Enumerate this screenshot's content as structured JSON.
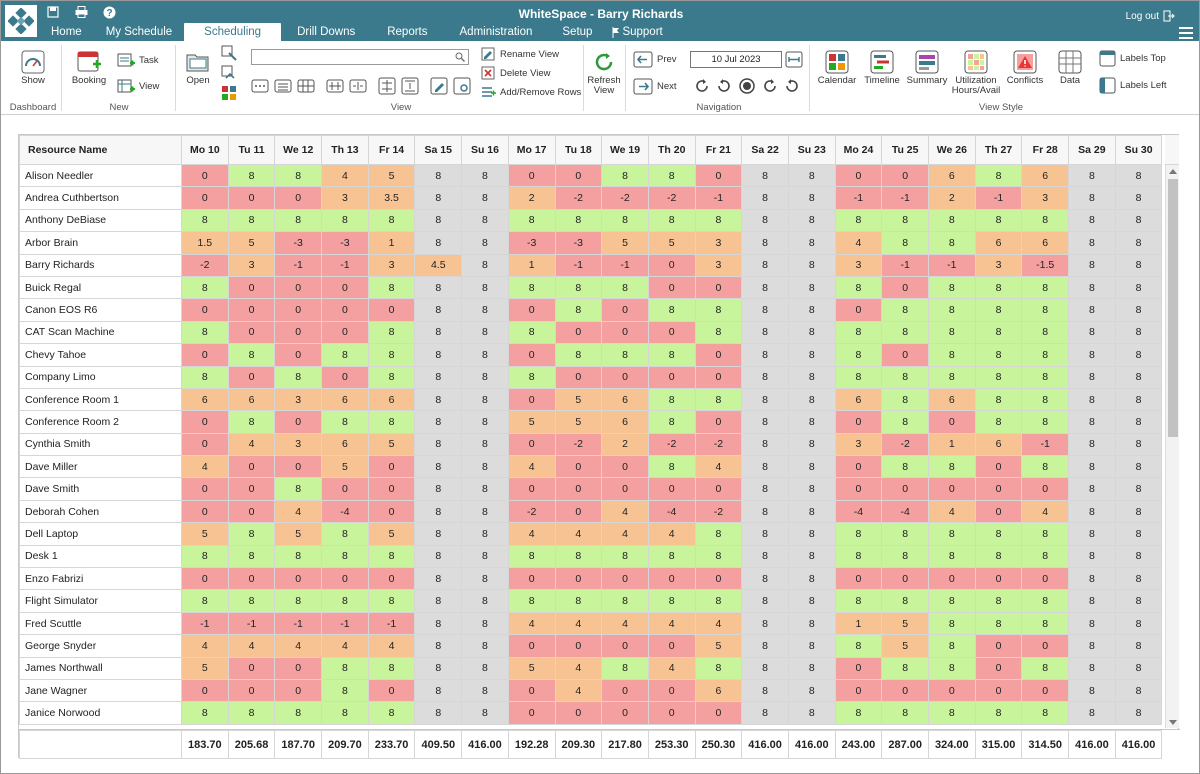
{
  "window": {
    "title": "WhiteSpace - Barry Richards",
    "logout": "Log out"
  },
  "menu_tabs": [
    "Home",
    "My Schedule",
    "Scheduling",
    "Drill Downs",
    "Reports",
    "Administration",
    "Setup",
    "Support"
  ],
  "active_tab": "Scheduling",
  "ribbon": {
    "show": "Show",
    "dashboard_group": "Dashboard",
    "booking": "Booking",
    "task": "Task",
    "view_new": "View",
    "new_group": "New",
    "open": "Open",
    "search_placeholder": "",
    "view_group": "View",
    "rename_view": "Rename View",
    "delete_view": "Delete View",
    "add_remove_rows": "Add/Remove Rows",
    "refresh_view": "Refresh View",
    "prev": "Prev",
    "next": "Next",
    "date": "10 Jul 2023",
    "navigation_group": "Navigation",
    "calendar": "Calendar",
    "timeline": "Timeline",
    "summary": "Summary",
    "utilization": "Utilization Hours/Avail",
    "conflicts": "Conflicts",
    "data": "Data",
    "labels_top": "Labels Top",
    "labels_left": "Labels Left",
    "view_style_group": "View Style"
  },
  "grid": {
    "name_header": "Resource Name",
    "days": [
      "Mo 10",
      "Tu 11",
      "We 12",
      "Th 13",
      "Fr 14",
      "Sa 15",
      "Su 16",
      "Mo 17",
      "Tu 18",
      "We 19",
      "Th 20",
      "Fr 21",
      "Sa 22",
      "Su 23",
      "Mo 24",
      "Tu 25",
      "We 26",
      "Th 27",
      "Fr 28",
      "Sa 29",
      "Su 30"
    ],
    "rows": [
      {
        "name": "Alison Needler",
        "values": [
          "0",
          "8",
          "8",
          "4",
          "5",
          "8",
          "8",
          "0",
          "0",
          "8",
          "8",
          "0",
          "8",
          "8",
          "0",
          "0",
          "6",
          "8",
          "6",
          "8",
          "8"
        ]
      },
      {
        "name": "Andrea Cuthbertson",
        "values": [
          "0",
          "0",
          "0",
          "3",
          "3.5",
          "8",
          "8",
          "2",
          "-2",
          "-2",
          "-2",
          "-1",
          "8",
          "8",
          "-1",
          "-1",
          "2",
          "-1",
          "3",
          "8",
          "8"
        ]
      },
      {
        "name": "Anthony DeBiase",
        "values": [
          "8",
          "8",
          "8",
          "8",
          "8",
          "8",
          "8",
          "8",
          "8",
          "8",
          "8",
          "8",
          "8",
          "8",
          "8",
          "8",
          "8",
          "8",
          "8",
          "8",
          "8"
        ]
      },
      {
        "name": "Arbor Brain",
        "values": [
          "1.5",
          "5",
          "-3",
          "-3",
          "1",
          "8",
          "8",
          "-3",
          "-3",
          "5",
          "5",
          "3",
          "8",
          "8",
          "4",
          "8",
          "8",
          "6",
          "6",
          "8",
          "8"
        ]
      },
      {
        "name": "Barry Richards",
        "values": [
          "-2",
          "3",
          "-1",
          "-1",
          "3",
          "4.5",
          "8",
          "1",
          "-1",
          "-1",
          "0",
          "3",
          "8",
          "8",
          "3",
          "-1",
          "-1",
          "3",
          "-1.5",
          "8",
          "8"
        ]
      },
      {
        "name": "Buick Regal",
        "values": [
          "8",
          "0",
          "0",
          "0",
          "8",
          "8",
          "8",
          "8",
          "8",
          "8",
          "0",
          "0",
          "8",
          "8",
          "8",
          "0",
          "8",
          "8",
          "8",
          "8",
          "8"
        ]
      },
      {
        "name": "Canon EOS R6",
        "values": [
          "0",
          "0",
          "0",
          "0",
          "0",
          "8",
          "8",
          "0",
          "8",
          "0",
          "8",
          "8",
          "8",
          "8",
          "0",
          "8",
          "8",
          "8",
          "8",
          "8",
          "8"
        ]
      },
      {
        "name": "CAT Scan Machine",
        "values": [
          "8",
          "0",
          "0",
          "0",
          "8",
          "8",
          "8",
          "8",
          "0",
          "0",
          "0",
          "8",
          "8",
          "8",
          "8",
          "8",
          "8",
          "8",
          "8",
          "8",
          "8"
        ]
      },
      {
        "name": "Chevy Tahoe",
        "values": [
          "0",
          "8",
          "0",
          "8",
          "8",
          "8",
          "8",
          "0",
          "8",
          "8",
          "8",
          "0",
          "8",
          "8",
          "8",
          "0",
          "8",
          "8",
          "8",
          "8",
          "8"
        ]
      },
      {
        "name": "Company Limo",
        "values": [
          "8",
          "0",
          "8",
          "0",
          "8",
          "8",
          "8",
          "8",
          "0",
          "0",
          "0",
          "0",
          "8",
          "8",
          "8",
          "8",
          "8",
          "8",
          "8",
          "8",
          "8"
        ]
      },
      {
        "name": "Conference Room 1",
        "values": [
          "6",
          "6",
          "3",
          "6",
          "6",
          "8",
          "8",
          "0",
          "5",
          "6",
          "8",
          "8",
          "8",
          "8",
          "6",
          "8",
          "6",
          "8",
          "8",
          "8",
          "8"
        ]
      },
      {
        "name": "Conference Room 2",
        "values": [
          "0",
          "8",
          "0",
          "8",
          "8",
          "8",
          "8",
          "5",
          "5",
          "6",
          "8",
          "0",
          "8",
          "8",
          "0",
          "8",
          "0",
          "8",
          "8",
          "8",
          "8"
        ]
      },
      {
        "name": "Cynthia Smith",
        "values": [
          "0",
          "4",
          "3",
          "6",
          "5",
          "8",
          "8",
          "0",
          "-2",
          "2",
          "-2",
          "-2",
          "8",
          "8",
          "3",
          "-2",
          "1",
          "6",
          "-1",
          "8",
          "8"
        ]
      },
      {
        "name": "Dave Miller",
        "values": [
          "4",
          "0",
          "0",
          "5",
          "0",
          "8",
          "8",
          "4",
          "0",
          "0",
          "8",
          "4",
          "8",
          "8",
          "0",
          "8",
          "8",
          "0",
          "8",
          "8",
          "8"
        ]
      },
      {
        "name": "Dave Smith",
        "values": [
          "0",
          "0",
          "8",
          "0",
          "0",
          "8",
          "8",
          "0",
          "0",
          "0",
          "0",
          "0",
          "8",
          "8",
          "0",
          "0",
          "0",
          "0",
          "0",
          "8",
          "8"
        ]
      },
      {
        "name": "Deborah Cohen",
        "values": [
          "0",
          "0",
          "4",
          "-4",
          "0",
          "8",
          "8",
          "-2",
          "0",
          "4",
          "-4",
          "-2",
          "8",
          "8",
          "-4",
          "-4",
          "4",
          "0",
          "4",
          "8",
          "8"
        ]
      },
      {
        "name": "Dell Laptop",
        "values": [
          "5",
          "8",
          "5",
          "8",
          "5",
          "8",
          "8",
          "4",
          "4",
          "4",
          "4",
          "8",
          "8",
          "8",
          "8",
          "8",
          "8",
          "8",
          "8",
          "8",
          "8"
        ]
      },
      {
        "name": "Desk 1",
        "values": [
          "8",
          "8",
          "8",
          "8",
          "8",
          "8",
          "8",
          "8",
          "8",
          "8",
          "8",
          "8",
          "8",
          "8",
          "8",
          "8",
          "8",
          "8",
          "8",
          "8",
          "8"
        ]
      },
      {
        "name": "Enzo Fabrizi",
        "values": [
          "0",
          "0",
          "0",
          "0",
          "0",
          "8",
          "8",
          "0",
          "0",
          "0",
          "0",
          "0",
          "8",
          "8",
          "0",
          "0",
          "0",
          "0",
          "0",
          "8",
          "8"
        ]
      },
      {
        "name": "Flight Simulator",
        "values": [
          "8",
          "8",
          "8",
          "8",
          "8",
          "8",
          "8",
          "8",
          "8",
          "8",
          "8",
          "8",
          "8",
          "8",
          "8",
          "8",
          "8",
          "8",
          "8",
          "8",
          "8"
        ]
      },
      {
        "name": "Fred Scuttle",
        "values": [
          "-1",
          "-1",
          "-1",
          "-1",
          "-1",
          "8",
          "8",
          "4",
          "4",
          "4",
          "4",
          "4",
          "8",
          "8",
          "1",
          "5",
          "8",
          "8",
          "8",
          "8",
          "8"
        ]
      },
      {
        "name": "George Snyder",
        "values": [
          "4",
          "4",
          "4",
          "4",
          "4",
          "8",
          "8",
          "0",
          "0",
          "0",
          "0",
          "5",
          "8",
          "8",
          "8",
          "5",
          "8",
          "0",
          "0",
          "8",
          "8"
        ]
      },
      {
        "name": "James Northwall",
        "values": [
          "5",
          "0",
          "0",
          "8",
          "8",
          "8",
          "8",
          "5",
          "4",
          "8",
          "4",
          "8",
          "8",
          "8",
          "0",
          "8",
          "8",
          "0",
          "8",
          "8",
          "8"
        ]
      },
      {
        "name": "Jane Wagner",
        "values": [
          "0",
          "0",
          "0",
          "8",
          "0",
          "8",
          "8",
          "0",
          "4",
          "0",
          "0",
          "6",
          "8",
          "8",
          "0",
          "0",
          "0",
          "0",
          "0",
          "8",
          "8"
        ]
      },
      {
        "name": "Janice Norwood",
        "values": [
          "8",
          "8",
          "8",
          "8",
          "8",
          "8",
          "8",
          "0",
          "0",
          "0",
          "0",
          "0",
          "8",
          "8",
          "8",
          "8",
          "8",
          "8",
          "8",
          "8",
          "8"
        ]
      }
    ],
    "totals": [
      "183.70",
      "205.68",
      "187.70",
      "209.70",
      "233.70",
      "409.50",
      "416.00",
      "192.28",
      "209.30",
      "217.80",
      "253.30",
      "250.30",
      "416.00",
      "416.00",
      "243.00",
      "287.00",
      "324.00",
      "315.00",
      "314.50",
      "416.00",
      "416.00"
    ]
  },
  "colors": {
    "titlebar": "#3a7a8c",
    "red": "#f5a0a0",
    "orange": "#f8c393",
    "green": "#c8f59c",
    "weekend": "#dcdcdc"
  }
}
